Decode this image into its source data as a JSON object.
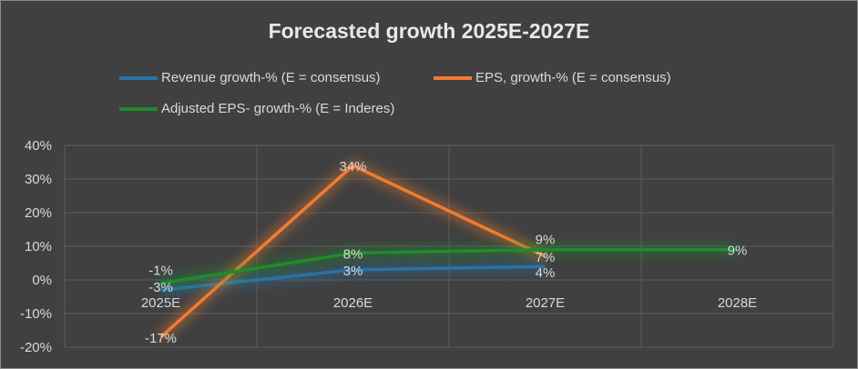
{
  "chart_data": {
    "type": "line",
    "title": "Forecasted growth 2025E-2027E",
    "categories": [
      "2025E",
      "2026E",
      "2027E",
      "2028E"
    ],
    "ylim": [
      -20,
      40
    ],
    "yticks": [
      "-20%",
      "-10%",
      "0%",
      "10%",
      "20%",
      "30%",
      "40%"
    ],
    "grid": true,
    "legend_position": "top",
    "series": [
      {
        "name": "Revenue growth-% (E = consensus)",
        "color": "#2a72a8",
        "values": [
          -3,
          3,
          4,
          null
        ],
        "labels": [
          "-3%",
          "3%",
          "4%",
          ""
        ]
      },
      {
        "name": "EPS, growth-% (E = consensus)",
        "color": "#f07c30",
        "values": [
          -17,
          34,
          7,
          null
        ],
        "labels": [
          "-17%",
          "34%",
          "7%",
          ""
        ]
      },
      {
        "name": "Adjusted EPS- growth-% (E = Inderes)",
        "color": "#1e8c2c",
        "values": [
          -1,
          8,
          9,
          9
        ],
        "labels": [
          "-1%",
          "8%",
          "9%",
          "9%"
        ]
      }
    ]
  }
}
